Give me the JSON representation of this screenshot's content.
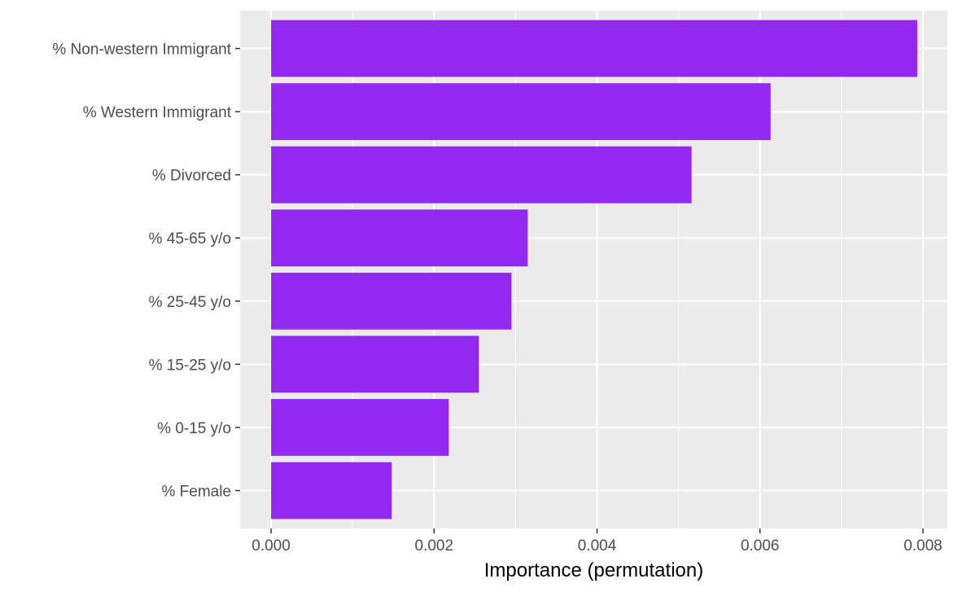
{
  "chart_data": {
    "type": "bar",
    "orientation": "horizontal",
    "title": "",
    "xlabel": "Importance (permutation)",
    "ylabel": "",
    "categories": [
      "% Non-western Immigrant",
      "% Western Immigrant",
      "% Divorced",
      "% 45-65 y/o",
      "% 25-45 y/o",
      "% 15-25 y/o",
      "% 0-15 y/o",
      "% Female"
    ],
    "values": [
      0.00793,
      0.00613,
      0.00516,
      0.00315,
      0.00295,
      0.00255,
      0.00218,
      0.00148
    ],
    "xlim": [
      -0.00038,
      0.0083
    ],
    "xticks": [
      0.0,
      0.002,
      0.004,
      0.006,
      0.008
    ],
    "xtick_labels": [
      "0.000",
      "0.002",
      "0.004",
      "0.006",
      "0.008"
    ],
    "grid": true,
    "colors": {
      "bar": "#9129f0",
      "panel": "#ebebeb",
      "grid": "#ffffff",
      "text": "#4d4d4d"
    }
  }
}
